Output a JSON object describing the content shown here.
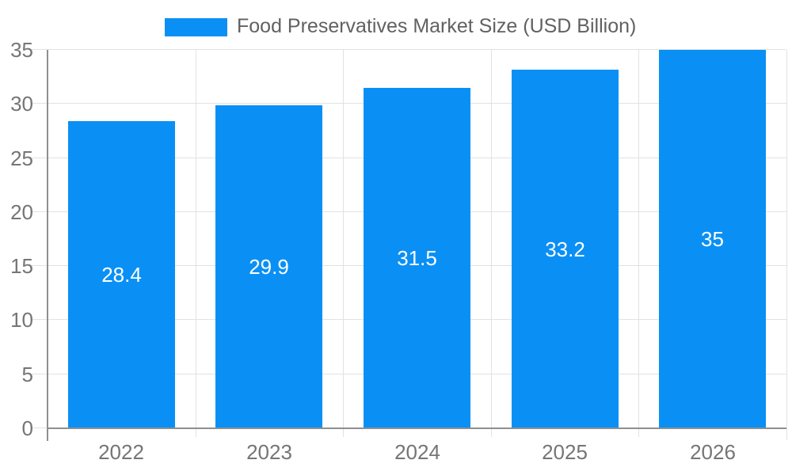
{
  "legend": {
    "label": "Food Preservatives Market Size (USD Billion)"
  },
  "chart_data": {
    "type": "bar",
    "title": "Food Preservatives Market Size (USD Billion)",
    "categories": [
      "2022",
      "2023",
      "2024",
      "2025",
      "2026"
    ],
    "series": [
      {
        "name": "Food Preservatives Market Size (USD Billion)",
        "values": [
          28.4,
          29.9,
          31.5,
          33.2,
          35
        ]
      }
    ],
    "value_labels": [
      "28.4",
      "29.9",
      "31.5",
      "33.2",
      "35"
    ],
    "ylim": [
      0,
      35
    ],
    "yticks": [
      0,
      5,
      10,
      15,
      20,
      25,
      30,
      35
    ],
    "grid": true,
    "legend_position": "top",
    "xlabel": "",
    "ylabel": ""
  },
  "colors": {
    "bar": "#0a90f5",
    "grid": "#e2e2e2",
    "tick": "#b3b3b3",
    "axis": "#8f8f8f",
    "axis_label": "#757575",
    "legend_text": "#616161",
    "value_label": "#ffffff",
    "background": "#ffffff"
  }
}
